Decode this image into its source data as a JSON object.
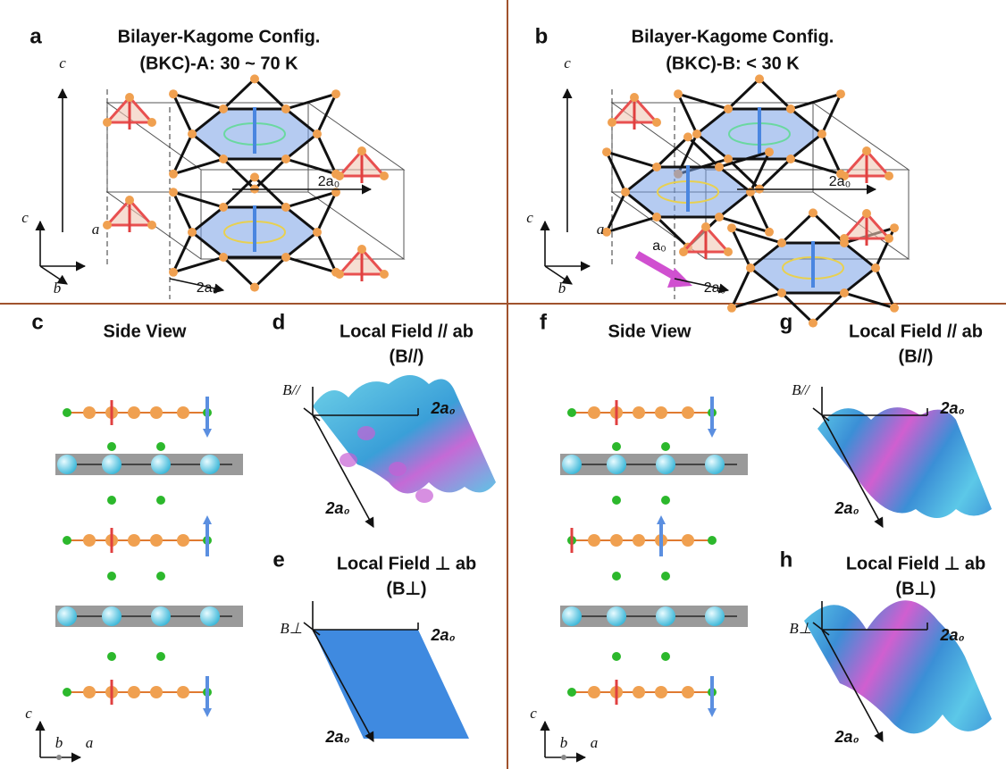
{
  "panels": [
    {
      "label": "a",
      "title": "Bilayer-Kagome Config.",
      "subtitle": "(BKC)-A: 30 ~ 70 K",
      "axes": [
        "c",
        "c",
        "a",
        "b"
      ],
      "dimensions": [
        "2a₀",
        "2a₀"
      ]
    },
    {
      "label": "b",
      "title": "Bilayer-Kagome Config.",
      "subtitle": "(BKC)-B:  < 30 K",
      "axes": [
        "c",
        "c",
        "a",
        "b"
      ],
      "dimensions": [
        "2a₀",
        "2a₀",
        "a₀"
      ]
    },
    {
      "label": "c",
      "title": "Side View",
      "axes": [
        "c",
        "b",
        "a"
      ]
    },
    {
      "label": "d",
      "title": "Local Field // ab",
      "subtitle": "(B//)",
      "axes": [
        "B//",
        "2a₀",
        "2a₀"
      ]
    },
    {
      "label": "e",
      "title": "Local Field ⊥ ab",
      "subtitle": "(B⊥)",
      "axes": [
        "B⊥",
        "2a₀",
        "2a₀"
      ]
    },
    {
      "label": "f",
      "title": "Side View",
      "axes": [
        "c",
        "b",
        "a"
      ]
    },
    {
      "label": "g",
      "title": "Local Field // ab",
      "subtitle": "(B//)",
      "axes": [
        "B//",
        "2a₀",
        "2a₀"
      ]
    },
    {
      "label": "h",
      "title": "Local Field ⊥ ab",
      "subtitle": "(B⊥)",
      "axes": [
        "B⊥",
        "2a₀",
        "2a₀"
      ]
    }
  ]
}
